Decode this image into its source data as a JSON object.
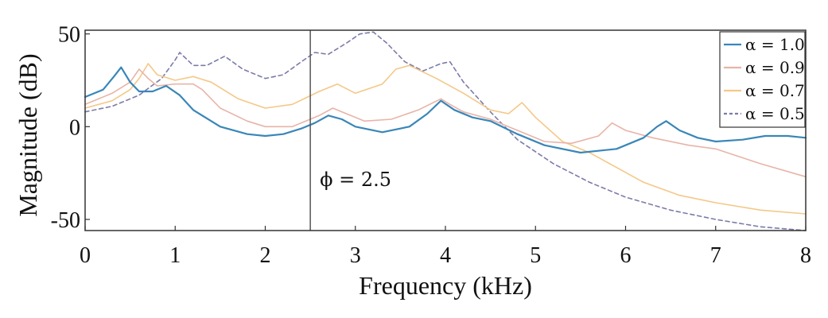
{
  "chart_data": {
    "type": "line",
    "xlabel": "Frequency (kHz)",
    "ylabel": "Magnitude (dB)",
    "xlim": [
      0,
      8
    ],
    "ylim": [
      -56,
      52
    ],
    "xticks": [
      "0",
      "1",
      "2",
      "3",
      "4",
      "5",
      "6",
      "7",
      "8"
    ],
    "yticks": [
      "50",
      "0",
      "-50"
    ],
    "grid": false,
    "legend_position": "top-right",
    "annotation": {
      "text": "ϕ = 2.5",
      "x": 2.5
    },
    "series": [
      {
        "name": "α = 1.0",
        "color": "#3a86b8",
        "style": "solid",
        "x": [
          0,
          0.2,
          0.32,
          0.4,
          0.5,
          0.6,
          0.75,
          0.9,
          1.05,
          1.2,
          1.5,
          1.8,
          2.0,
          2.2,
          2.4,
          2.55,
          2.7,
          2.85,
          3.0,
          3.3,
          3.6,
          3.8,
          3.95,
          4.1,
          4.3,
          4.5,
          4.8,
          5.1,
          5.5,
          5.9,
          6.2,
          6.35,
          6.45,
          6.6,
          6.8,
          7.0,
          7.3,
          7.55,
          7.8,
          8.0
        ],
        "y": [
          16,
          20,
          27,
          32,
          24,
          19,
          19,
          22,
          17,
          9,
          0,
          -4,
          -5,
          -4,
          -1,
          2,
          6,
          4,
          0,
          -3,
          0,
          7,
          14,
          9,
          5,
          3,
          -4,
          -10,
          -14,
          -12,
          -6,
          0,
          3,
          -2,
          -6,
          -8,
          -7,
          -5,
          -5,
          -6
        ]
      },
      {
        "name": "α = 0.9",
        "color": "#e8b4a8",
        "style": "solid",
        "x": [
          0,
          0.3,
          0.5,
          0.6,
          0.7,
          0.8,
          1.0,
          1.2,
          1.3,
          1.5,
          1.8,
          2.0,
          2.3,
          2.6,
          2.75,
          2.9,
          3.1,
          3.4,
          3.7,
          3.95,
          4.05,
          4.2,
          4.5,
          4.8,
          5.1,
          5.4,
          5.7,
          5.85,
          6.0,
          6.3,
          6.7,
          7.0,
          7.5,
          8.0
        ],
        "y": [
          12,
          18,
          24,
          31,
          26,
          22,
          23,
          23,
          20,
          10,
          3,
          0,
          0,
          6,
          10,
          7,
          3,
          4,
          9,
          15,
          12,
          8,
          4,
          -2,
          -8,
          -9,
          -5,
          2,
          -2,
          -6,
          -10,
          -12,
          -20,
          -27
        ]
      },
      {
        "name": "α = 0.7",
        "color": "#f4c888",
        "style": "solid",
        "x": [
          0,
          0.3,
          0.5,
          0.6,
          0.7,
          0.8,
          1.0,
          1.2,
          1.4,
          1.7,
          2.0,
          2.3,
          2.6,
          2.8,
          3.0,
          3.3,
          3.45,
          3.6,
          3.9,
          4.2,
          4.5,
          4.7,
          4.85,
          5.0,
          5.3,
          5.6,
          5.9,
          6.2,
          6.6,
          7.0,
          7.5,
          8.0
        ],
        "y": [
          10,
          14,
          20,
          26,
          34,
          28,
          25,
          27,
          24,
          15,
          10,
          12,
          19,
          23,
          18,
          23,
          31,
          33,
          26,
          18,
          9,
          7,
          13,
          5,
          -8,
          -14,
          -22,
          -30,
          -37,
          -41,
          -45,
          -47
        ]
      },
      {
        "name": "α = 0.5",
        "color": "#7b7ba8",
        "style": "dashed",
        "x": [
          0,
          0.3,
          0.6,
          0.85,
          1.0,
          1.05,
          1.2,
          1.35,
          1.55,
          1.75,
          2.0,
          2.2,
          2.4,
          2.55,
          2.7,
          2.9,
          3.05,
          3.2,
          3.35,
          3.55,
          3.75,
          3.95,
          4.05,
          4.2,
          4.5,
          4.8,
          5.2,
          5.6,
          6.0,
          6.5,
          7.0,
          7.5,
          8.0
        ],
        "y": [
          8,
          11,
          17,
          26,
          36,
          40,
          33,
          33,
          38,
          31,
          26,
          28,
          35,
          40,
          39,
          45,
          50,
          51,
          45,
          35,
          30,
          34,
          35,
          24,
          8,
          -7,
          -20,
          -30,
          -38,
          -45,
          -50,
          -54,
          -56
        ]
      }
    ]
  }
}
